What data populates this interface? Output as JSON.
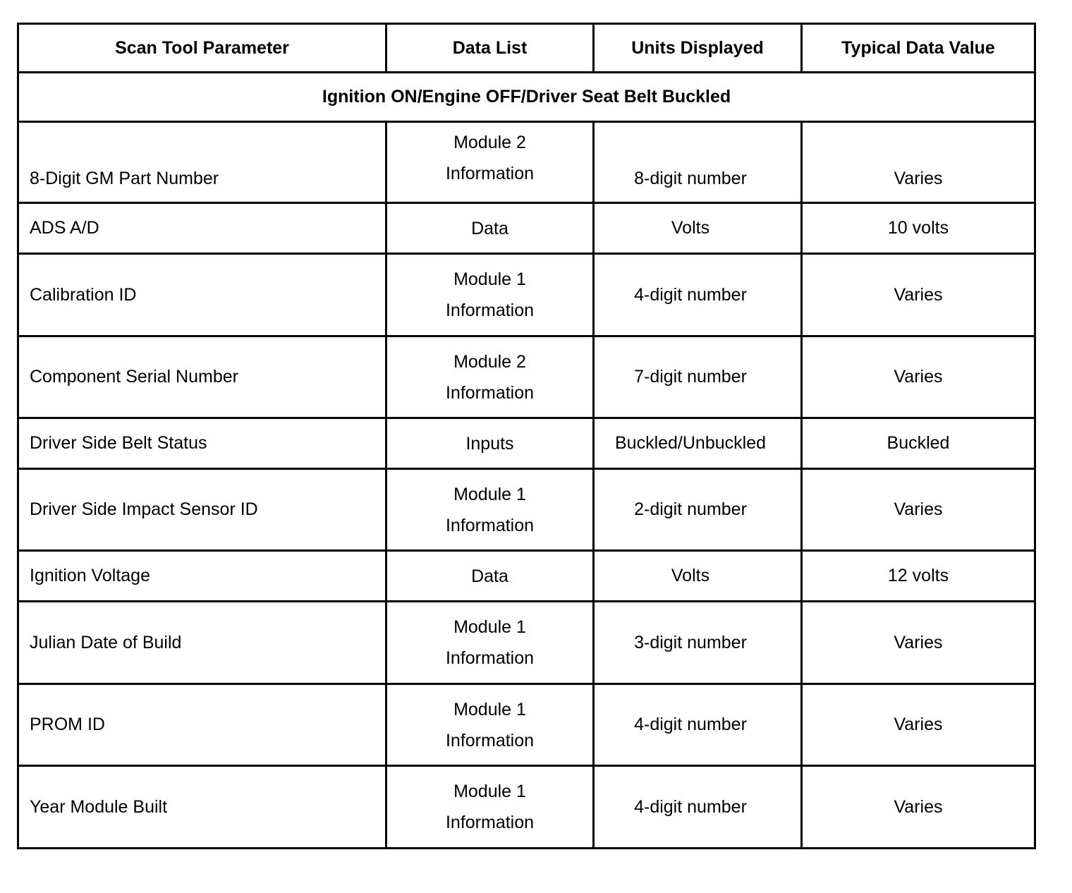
{
  "headers": [
    "Scan Tool Parameter",
    "Data List",
    "Units Displayed",
    "Typical Data Value"
  ],
  "condition": "Ignition ON/Engine OFF/Driver Seat Belt Buckled",
  "rows": [
    {
      "parameter": "8-Digit GM Part Number",
      "data_list": [
        "Module 2",
        "Information"
      ],
      "units": "8-digit number",
      "typical": "Varies"
    },
    {
      "parameter": "ADS A/D",
      "data_list": [
        "Data"
      ],
      "units": "Volts",
      "typical": "10 volts"
    },
    {
      "parameter": "Calibration ID",
      "data_list": [
        "Module 1",
        "Information"
      ],
      "units": "4-digit number",
      "typical": "Varies"
    },
    {
      "parameter": "Component Serial Number",
      "data_list": [
        "Module 2",
        "Information"
      ],
      "units": "7-digit number",
      "typical": "Varies"
    },
    {
      "parameter": "Driver Side Belt Status",
      "data_list": [
        "Inputs"
      ],
      "units": "Buckled/Unbuckled",
      "typical": "Buckled"
    },
    {
      "parameter": "Driver Side Impact Sensor ID",
      "data_list": [
        "Module 1",
        "Information"
      ],
      "units": "2-digit number",
      "typical": "Varies"
    },
    {
      "parameter": "Ignition Voltage",
      "data_list": [
        "Data"
      ],
      "units": "Volts",
      "typical": "12 volts"
    },
    {
      "parameter": "Julian Date of Build",
      "data_list": [
        "Module 1",
        "Information"
      ],
      "units": "3-digit number",
      "typical": "Varies"
    },
    {
      "parameter": "PROM ID",
      "data_list": [
        "Module 1",
        "Information"
      ],
      "units": "4-digit number",
      "typical": "Varies"
    },
    {
      "parameter": "Year Module Built",
      "data_list": [
        "Module 1",
        "Information"
      ],
      "units": "4-digit number",
      "typical": "Varies"
    }
  ]
}
